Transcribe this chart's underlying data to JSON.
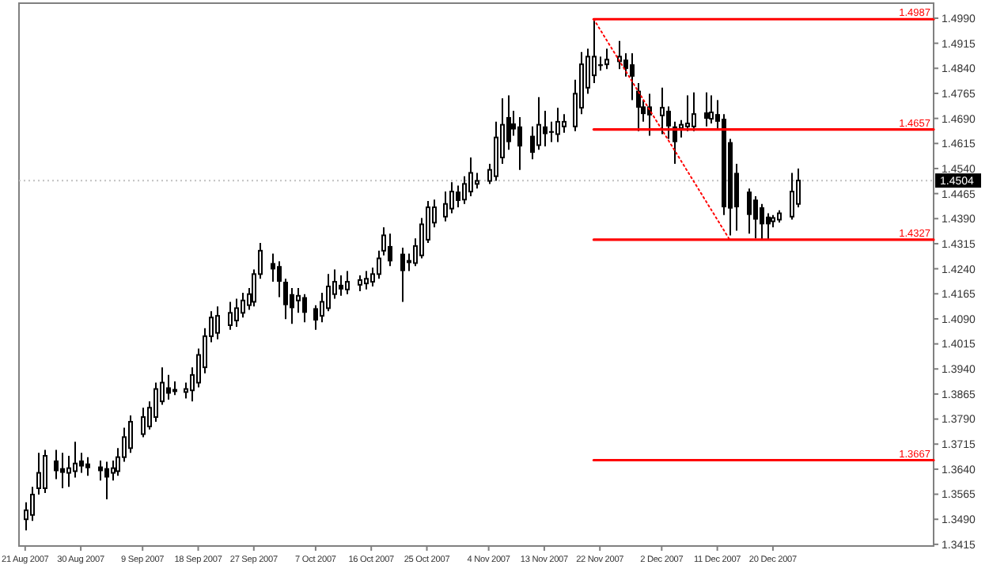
{
  "chart_data": {
    "type": "candlestick",
    "color": "#000000",
    "x": [
      "2007-08-21",
      "2007-08-22",
      "2007-08-23",
      "2007-08-24",
      "2007-08-26",
      "2007-08-27",
      "2007-08-28",
      "2007-08-29",
      "2007-08-30",
      "2007-08-31",
      "2007-09-02",
      "2007-09-03",
      "2007-09-04",
      "2007-09-05",
      "2007-09-06",
      "2007-09-07",
      "2007-09-09",
      "2007-09-10",
      "2007-09-11",
      "2007-09-12",
      "2007-09-13",
      "2007-09-14",
      "2007-09-16",
      "2007-09-17",
      "2007-09-18",
      "2007-09-19",
      "2007-09-20",
      "2007-09-21",
      "2007-09-23",
      "2007-09-24",
      "2007-09-25",
      "2007-09-26",
      "2007-09-27",
      "2007-09-28",
      "2007-09-30",
      "2007-10-01",
      "2007-10-02",
      "2007-10-03",
      "2007-10-04",
      "2007-10-05",
      "2007-10-07",
      "2007-10-08",
      "2007-10-09",
      "2007-10-10",
      "2007-10-11",
      "2007-10-12",
      "2007-10-14",
      "2007-10-15",
      "2007-10-16",
      "2007-10-17",
      "2007-10-18",
      "2007-10-19",
      "2007-10-21",
      "2007-10-22",
      "2007-10-23",
      "2007-10-24",
      "2007-10-25",
      "2007-10-26",
      "2007-10-28",
      "2007-10-29",
      "2007-10-30",
      "2007-10-31",
      "2007-11-01",
      "2007-11-02",
      "2007-11-04",
      "2007-11-05",
      "2007-11-06",
      "2007-11-07",
      "2007-11-08",
      "2007-11-09",
      "2007-11-11",
      "2007-11-12",
      "2007-11-13",
      "2007-11-14",
      "2007-11-15",
      "2007-11-16",
      "2007-11-18",
      "2007-11-19",
      "2007-11-20",
      "2007-11-21",
      "2007-11-22",
      "2007-11-23",
      "2007-11-25",
      "2007-11-26",
      "2007-11-27",
      "2007-11-28",
      "2007-11-29",
      "2007-11-30",
      "2007-12-02",
      "2007-12-03",
      "2007-12-04",
      "2007-12-05",
      "2007-12-06",
      "2007-12-07",
      "2007-12-09",
      "2007-12-10",
      "2007-12-11",
      "2007-12-12",
      "2007-12-13",
      "2007-12-14",
      "2007-12-16",
      "2007-12-17",
      "2007-12-18",
      "2007-12-19",
      "2007-12-20",
      "2007-12-21",
      "2007-12-23",
      "2007-12-24"
    ],
    "ohlc": [
      [
        1.349,
        1.3541,
        1.3457,
        1.3517
      ],
      [
        1.3503,
        1.3587,
        1.3485,
        1.3564
      ],
      [
        1.3583,
        1.3689,
        1.3564,
        1.3629
      ],
      [
        1.3583,
        1.3698,
        1.3569,
        1.368
      ],
      [
        1.3666,
        1.3698,
        1.361,
        1.3634
      ],
      [
        1.3643,
        1.3689,
        1.3583,
        1.3629
      ],
      [
        1.3629,
        1.368,
        1.3587,
        1.3643
      ],
      [
        1.3634,
        1.3722,
        1.3615,
        1.3657
      ],
      [
        1.3666,
        1.3689,
        1.3629,
        1.3648
      ],
      [
        1.3657,
        1.3676,
        1.362,
        1.3643
      ],
      [
        1.3648,
        1.3666,
        1.3606,
        1.3634
      ],
      [
        1.3643,
        1.3662,
        1.355,
        1.3615
      ],
      [
        1.3629,
        1.3666,
        1.3606,
        1.3643
      ],
      [
        1.3634,
        1.3703,
        1.362,
        1.3676
      ],
      [
        1.3676,
        1.3764,
        1.3662,
        1.3736
      ],
      [
        1.3703,
        1.3801,
        1.3689,
        1.3782
      ],
      [
        1.3745,
        1.3824,
        1.3736,
        1.3796
      ],
      [
        1.3768,
        1.3843,
        1.3759,
        1.3824
      ],
      [
        1.3796,
        1.3899,
        1.3782,
        1.388
      ],
      [
        1.3843,
        1.3945,
        1.3833,
        1.3899
      ],
      [
        1.3885,
        1.3922,
        1.3848,
        1.3866
      ],
      [
        1.388,
        1.3903,
        1.3862,
        1.3871
      ],
      [
        1.3871,
        1.3899,
        1.3852,
        1.388
      ],
      [
        1.3876,
        1.3945,
        1.3843,
        1.3922
      ],
      [
        1.3899,
        1.4001,
        1.3885,
        1.3982
      ],
      [
        1.3945,
        1.4062,
        1.3927,
        1.4038
      ],
      [
        1.4038,
        1.4113,
        1.402,
        1.4094
      ],
      [
        1.4048,
        1.4127,
        1.4029,
        1.4099
      ],
      [
        1.4071,
        1.4141,
        1.4057,
        1.4108
      ],
      [
        1.4085,
        1.415,
        1.4066,
        1.4122
      ],
      [
        1.4108,
        1.4168,
        1.4094,
        1.4145
      ],
      [
        1.4131,
        1.4182,
        1.4117,
        1.4164
      ],
      [
        1.4141,
        1.4238,
        1.4127,
        1.4224
      ],
      [
        1.4224,
        1.4317,
        1.421,
        1.4294
      ],
      [
        1.4257,
        1.4285,
        1.4201,
        1.4238
      ],
      [
        1.4248,
        1.4262,
        1.4155,
        1.4201
      ],
      [
        1.4201,
        1.421,
        1.4089,
        1.4131
      ],
      [
        1.4164,
        1.4182,
        1.4075,
        1.4122
      ],
      [
        1.4145,
        1.4182,
        1.4108,
        1.4159
      ],
      [
        1.4155,
        1.4164,
        1.408,
        1.4108
      ],
      [
        1.4122,
        1.4131,
        1.4057,
        1.4085
      ],
      [
        1.4099,
        1.4168,
        1.408,
        1.4141
      ],
      [
        1.4122,
        1.4224,
        1.4113,
        1.4187
      ],
      [
        1.4164,
        1.4238,
        1.415,
        1.4201
      ],
      [
        1.4192,
        1.422,
        1.4159,
        1.4178
      ],
      [
        1.4178,
        1.4233,
        1.4164,
        1.4201
      ],
      [
        1.4192,
        1.422,
        1.4173,
        1.4206
      ],
      [
        1.4196,
        1.4233,
        1.4178,
        1.421
      ],
      [
        1.4201,
        1.4243,
        1.4187,
        1.4224
      ],
      [
        1.4224,
        1.4294,
        1.421,
        1.4271
      ],
      [
        1.4294,
        1.4364,
        1.428,
        1.434
      ],
      [
        1.4308,
        1.4345,
        1.4248,
        1.4262
      ],
      [
        1.4285,
        1.4303,
        1.4141,
        1.4233
      ],
      [
        1.4266,
        1.4285,
        1.4233,
        1.4257
      ],
      [
        1.4257,
        1.4331,
        1.4248,
        1.4308
      ],
      [
        1.428,
        1.4392,
        1.4271,
        1.4373
      ],
      [
        1.4327,
        1.4443,
        1.4317,
        1.4424
      ],
      [
        1.4378,
        1.4447,
        1.4364,
        1.4424
      ],
      [
        1.4396,
        1.4471,
        1.4382,
        1.4434
      ],
      [
        1.442,
        1.4499,
        1.4406,
        1.4471
      ],
      [
        1.4471,
        1.4489,
        1.4424,
        1.4443
      ],
      [
        1.4447,
        1.4517,
        1.4434,
        1.4494
      ],
      [
        1.4471,
        1.4573,
        1.4457,
        1.4527
      ],
      [
        1.4494,
        1.4527,
        1.448,
        1.4503
      ],
      [
        1.4503,
        1.4554,
        1.4494,
        1.4536
      ],
      [
        1.4517,
        1.468,
        1.4503,
        1.4633
      ],
      [
        1.4573,
        1.475,
        1.4554,
        1.4671
      ],
      [
        1.4694,
        1.4759,
        1.4596,
        1.4619
      ],
      [
        1.4675,
        1.4713,
        1.4638,
        1.4657
      ],
      [
        1.4666,
        1.4694,
        1.4536,
        1.4606
      ],
      [
        1.4638,
        1.4666,
        1.4568,
        1.4587
      ],
      [
        1.461,
        1.4754,
        1.4596,
        1.4671
      ],
      [
        1.4666,
        1.4713,
        1.4606,
        1.4643
      ],
      [
        1.4652,
        1.468,
        1.4619,
        1.4647
      ],
      [
        1.4643,
        1.4722,
        1.4619,
        1.468
      ],
      [
        1.4666,
        1.4703,
        1.4647,
        1.468
      ],
      [
        1.4666,
        1.4806,
        1.4652,
        1.4764
      ],
      [
        1.4722,
        1.4889,
        1.4703,
        1.4852
      ],
      [
        1.4782,
        1.4899,
        1.4764,
        1.4875
      ],
      [
        1.4819,
        1.4987,
        1.4796,
        1.4875
      ],
      [
        1.4852,
        1.4875,
        1.4833,
        1.4847
      ],
      [
        1.4852,
        1.4899,
        1.4838,
        1.4866
      ],
      [
        1.4861,
        1.4922,
        1.4838,
        1.4875
      ],
      [
        1.4866,
        1.4885,
        1.4815,
        1.4838
      ],
      [
        1.4852,
        1.4885,
        1.4745,
        1.4815
      ],
      [
        1.4773,
        1.4796,
        1.4652,
        1.4722
      ],
      [
        1.4726,
        1.4745,
        1.468,
        1.4703
      ],
      [
        1.4726,
        1.4764,
        1.4638,
        1.4699
      ],
      [
        1.4699,
        1.4782,
        1.4643,
        1.4722
      ],
      [
        1.4713,
        1.4726,
        1.4629,
        1.4666
      ],
      [
        1.4666,
        1.468,
        1.4554,
        1.4619
      ],
      [
        1.4661,
        1.4685,
        1.4633,
        1.4671
      ],
      [
        1.4666,
        1.4759,
        1.4652,
        1.4675
      ],
      [
        1.4666,
        1.4768,
        1.4652,
        1.4703
      ],
      [
        1.4708,
        1.4768,
        1.4666,
        1.4689
      ],
      [
        1.4689,
        1.4759,
        1.4675,
        1.4708
      ],
      [
        1.4703,
        1.4745,
        1.4661,
        1.468
      ],
      [
        1.4689,
        1.4703,
        1.4401,
        1.4424
      ],
      [
        1.4619,
        1.4629,
        1.434,
        1.442
      ],
      [
        1.4527,
        1.4554,
        1.4354,
        1.4424
      ],
      [
        1.4471,
        1.448,
        1.4345,
        1.4401
      ],
      [
        1.4447,
        1.4457,
        1.4331,
        1.4387
      ],
      [
        1.4424,
        1.4434,
        1.4327,
        1.4373
      ],
      [
        1.4396,
        1.4406,
        1.4327,
        1.4373
      ],
      [
        1.4382,
        1.4401,
        1.4364,
        1.4392
      ],
      [
        1.4387,
        1.4415,
        1.4378,
        1.4406
      ],
      [
        1.4396,
        1.4527,
        1.4387,
        1.4471
      ],
      [
        1.4434,
        1.454,
        1.4424,
        1.4504
      ]
    ],
    "series": [
      {
        "type": "line",
        "color": "#ff0000",
        "x": [
          "2007-11-21",
          "2008-01-15"
        ],
        "values": [
          1.4987,
          1.4987
        ],
        "value_labels": [
          null,
          "1.4987"
        ]
      },
      {
        "type": "line",
        "color": "#ff0000",
        "x": [
          "2007-11-21",
          "2008-01-15"
        ],
        "values": [
          1.4657,
          1.4657
        ],
        "value_labels": [
          null,
          "1.4657"
        ]
      },
      {
        "type": "line",
        "color": "#ff0000",
        "x": [
          "2007-11-21",
          "2008-01-15"
        ],
        "values": [
          1.4327,
          1.4327
        ],
        "value_labels": [
          null,
          "1.4327"
        ]
      },
      {
        "type": "line",
        "color": "#ff0000",
        "x": [
          "2007-11-21",
          "2008-01-15"
        ],
        "values": [
          1.3667,
          1.3667
        ],
        "value_labels": [
          null,
          "1.3667"
        ]
      },
      {
        "type": "line",
        "color": "#ff0000",
        "line_style": "dotted",
        "x": [
          "2007-11-21",
          "2007-12-13"
        ],
        "values": [
          1.4987,
          1.4327
        ]
      }
    ],
    "ref_lines": [
      {
        "axis": "y",
        "value": 1.4504,
        "label": "1.4504",
        "color": "#c0c0c0",
        "line_style": "dotted"
      }
    ],
    "xlim": [
      "2007-08-20",
      "2008-01-15"
    ],
    "xticks": [
      {
        "value": "2007-08-21",
        "label": "21 Aug 2007"
      },
      {
        "value": "2007-08-30",
        "label": "30 Aug 2007"
      },
      {
        "value": "2007-09-09",
        "label": "9 Sep 2007"
      },
      {
        "value": "2007-09-18",
        "label": "18 Sep 2007"
      },
      {
        "value": "2007-09-27",
        "label": "27 Sep 2007"
      },
      {
        "value": "2007-10-07",
        "label": "7 Oct 2007"
      },
      {
        "value": "2007-10-16",
        "label": "16 Oct 2007"
      },
      {
        "value": "2007-10-25",
        "label": "25 Oct 2007"
      },
      {
        "value": "2007-11-04",
        "label": "4 Nov 2007"
      },
      {
        "value": "2007-11-13",
        "label": "13 Nov 2007"
      },
      {
        "value": "2007-11-22",
        "label": "22 Nov 2007"
      },
      {
        "value": "2007-12-02",
        "label": "2 Dec 2007"
      },
      {
        "value": "2007-12-11",
        "label": "11 Dec 2007"
      },
      {
        "value": "2007-12-20",
        "label": "20 Dec 2007"
      }
    ],
    "ylim": [
      1.341,
      1.5035
    ],
    "yticks": [
      {
        "value": 1.499,
        "label": "1.4990"
      },
      1.4915,
      {
        "value": 1.484,
        "label": "1.4840"
      },
      1.4765,
      {
        "value": 1.469,
        "label": "1.4690"
      },
      1.4615,
      {
        "value": 1.454,
        "label": "1.4540"
      },
      1.4465,
      {
        "value": 1.439,
        "label": "1.4390"
      },
      1.4315,
      {
        "value": 1.424,
        "label": "1.4240"
      },
      1.4165,
      {
        "value": 1.409,
        "label": "1.4090"
      },
      1.4015,
      {
        "value": 1.394,
        "label": "1.3940"
      },
      1.3865,
      {
        "value": 1.379,
        "label": "1.3790"
      },
      1.3715,
      {
        "value": 1.364,
        "label": "1.3640"
      },
      1.3565,
      {
        "value": 1.349,
        "label": "1.3490"
      },
      1.3415
    ],
    "grid": false
  }
}
